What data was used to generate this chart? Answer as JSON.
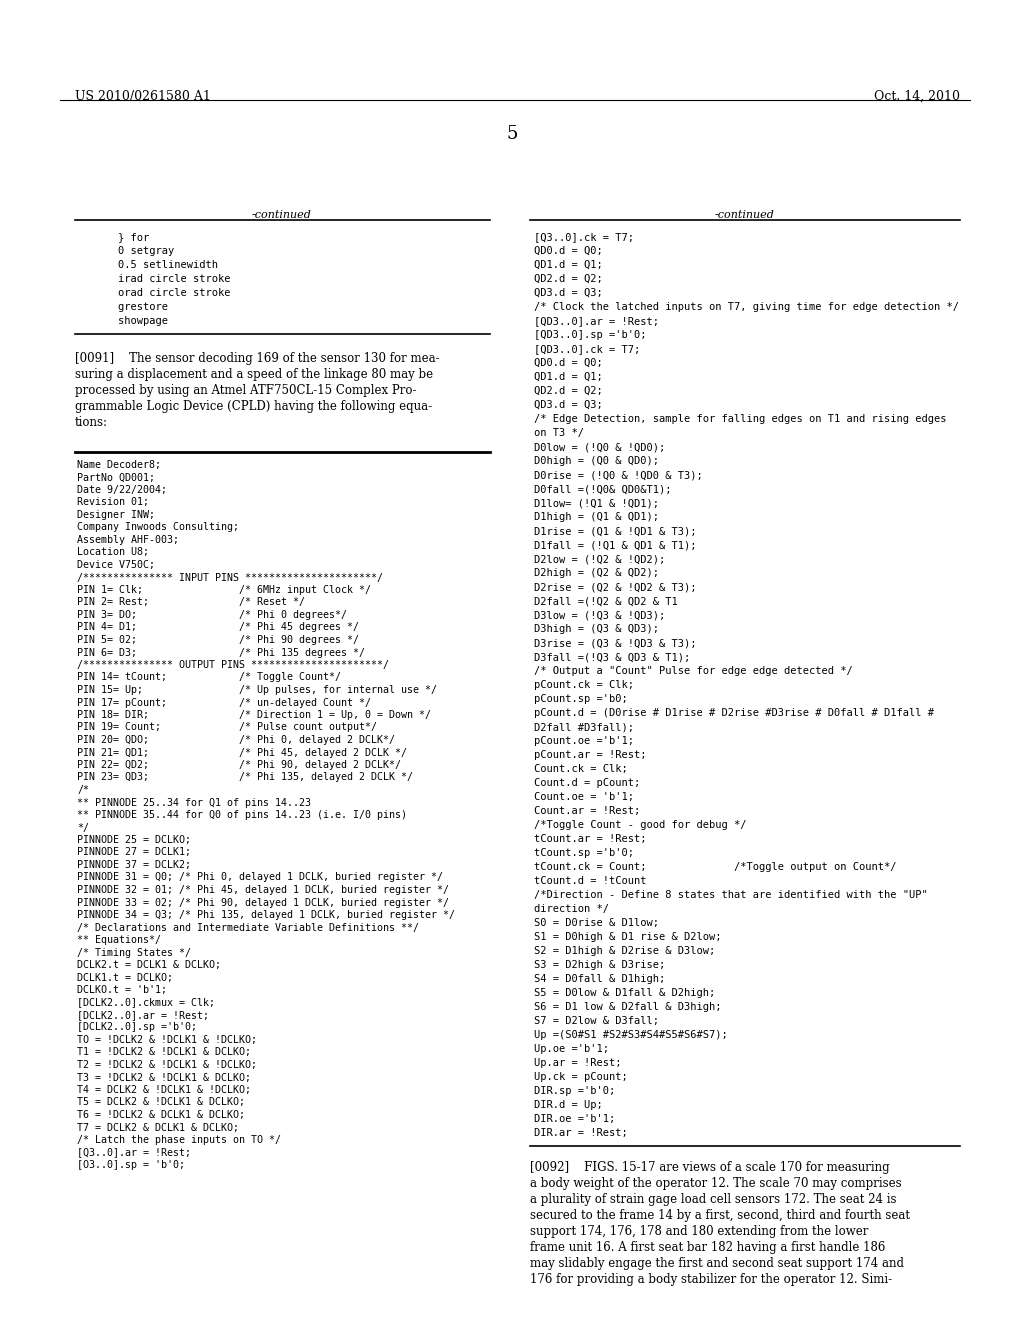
{
  "header_left": "US 2010/0261580 A1",
  "header_right": "Oct. 14, 2010",
  "page_number": "5",
  "bg_color": "#ffffff",
  "text_color": "#000000",
  "col1_code_top": [
    "    } for",
    "    0 setgray",
    "    0.5 setlinewidth",
    "    irad circle stroke",
    "    orad circle stroke",
    "    grestore",
    "    showpage"
  ],
  "col2_code_top": [
    "[Q3..0].ck = T7;",
    "QD0.d = Q0;",
    "QD1.d = Q1;",
    "QD2.d = Q2;",
    "QD3.d = Q3;",
    "/* Clock the latched inputs on T7, giving time for edge detection */",
    "[QD3..0].ar = !Rest;",
    "[QD3..0].sp ='b'0;",
    "[QD3..0].ck = T7;",
    "QD0.d = Q0;",
    "QD1.d = Q1;",
    "QD2.d = Q2;",
    "QD3.d = Q3;",
    "/* Edge Detection, sample for falling edges on T1 and rising edges",
    "on T3 */",
    "D0low = (!Q0 & !QD0);",
    "D0high = (Q0 & QD0);",
    "D0rise = (!Q0 & !QD0 & T3);",
    "D0fall =(!Q0& QD0&T1);",
    "D1low= (!Q1 & !QD1);",
    "D1high = (Q1 & QD1);",
    "D1rise = (Q1 & !QD1 & T3);",
    "D1fall = (!Q1 & QD1 & T1);",
    "D2low = (!Q2 & !QD2);",
    "D2high = (Q2 & QD2);",
    "D2rise = (Q2 & !QD2 & T3);",
    "D2fall =(!Q2 & QD2 & T1",
    "D3low = (!Q3 & !QD3);",
    "D3high = (Q3 & QD3);",
    "D3rise = (Q3 & !QD3 & T3);",
    "D3fall =(!Q3 & QD3 & T1);",
    "/* Output a \"Count\" Pulse for edge edge detected */",
    "pCount.ck = Clk;",
    "pCount.sp ='b0;",
    "pCount.d = (D0rise # D1rise # D2rise #D3rise # D0fall # D1fall #",
    "D2fall #D3fall);",
    "pCount.oe ='b'1;",
    "pCount.ar = !Rest;",
    "Count.ck = Clk;",
    "Count.d = pCount;",
    "Count.oe = 'b'1;",
    "Count.ar = !Rest;",
    "/*Toggle Count - good for debug */",
    "tCount.ar = !Rest;",
    "tCount.sp ='b'0;",
    "tCount.ck = Count;              /*Toggle output on Count*/",
    "tCount.d = !tCount",
    "/*Direction - Define 8 states that are identified with the \"UP\"",
    "direction */",
    "S0 = D0rise & D1low;",
    "S1 = D0high & D1 rise & D2low;",
    "S2 = D1high & D2rise & D3low;",
    "S3 = D2high & D3rise;",
    "S4 = D0fall & D1high;",
    "S5 = D0low & D1fall & D2high;",
    "S6 = D1 low & D2fall & D3high;",
    "S7 = D2low & D3fall;",
    "Up =(S0#S1 #S2#S3#S4#S5#S6#S7);",
    "Up.oe ='b'1;",
    "Up.ar = !Rest;",
    "Up.ck = pCount;",
    "DIR.sp ='b'0;",
    "DIR.d = Up;",
    "DIR.oe ='b'1;",
    "DIR.ar = !Rest;"
  ],
  "col1_code_bottom": [
    "Name Decoder8;",
    "PartNo QD001;",
    "Date 9/22/2004;",
    "Revision 01;",
    "Designer INW;",
    "Company Inwoods Consulting;",
    "Assembly AHF-003;",
    "Location U8;",
    "Device V750C;",
    "/*************** INPUT PINS **********************/",
    "PIN 1= Clk;                /* 6MHz input Clock */",
    "PIN 2= Rest;               /* Reset */",
    "PIN 3= DO;                 /* Phi 0 degrees*/",
    "PIN 4= D1;                 /* Phi 45 degrees */",
    "PIN 5= 02;                 /* Phi 90 degrees */",
    "PIN 6= D3;                 /* Phi 135 degrees */",
    "/*************** OUTPUT PINS **********************/",
    "PIN 14= tCount;            /* Toggle Count*/",
    "PIN 15= Up;                /* Up pulses, for internal use */",
    "PIN 17= pCount;            /* un-delayed Count */",
    "PIN 18= DIR;               /* Direction 1 = Up, 0 = Down */",
    "PIN 19= Count;             /* Pulse count output*/",
    "PIN 20= QDO;               /* Phi 0, delayed 2 DCLK*/",
    "PIN 21= QD1;               /* Phi 45, delayed 2 DCLK */",
    "PIN 22= QD2;               /* Phi 90, delayed 2 DCLK*/",
    "PIN 23= QD3;               /* Phi 135, delayed 2 DCLK */",
    "/*",
    "** PINNODE 25..34 for Q1 of pins 14..23",
    "** PINNODE 35..44 for Q0 of pins 14..23 (i.e. I/0 pins)",
    "*/",
    "PINNODE 25 = DCLKO;",
    "PINNODE 27 = DCLK1;",
    "PINNODE 37 = DCLK2;",
    "PINNODE 31 = Q0; /* Phi 0, delayed 1 DCLK, buried register */",
    "PINNODE 32 = 01; /* Phi 45, delayed 1 DCLK, buried register */",
    "PINNODE 33 = 02; /* Phi 90, delayed 1 DCLK, buried register */",
    "PINNODE 34 = Q3; /* Phi 135, delayed 1 DCLK, buried register */",
    "/* Declarations and Intermediate Variable Definitions **/",
    "** Equations*/",
    "/* Timing States */",
    "DCLK2.t = DCLK1 & DCLKO;",
    "DCLK1.t = DCLKO;",
    "DCLKO.t = 'b'1;",
    "[DCLK2..0].ckmux = Clk;",
    "[DCLK2..0].ar = !Rest;",
    "[DCLK2..0].sp ='b'0;",
    "TO = !DCLK2 & !DCLK1 & !DCLKO;",
    "T1 = !DCLK2 & !DCLK1 & DCLKO;",
    "T2 = !DCLK2 & !DCLK1 & !DCLKO;",
    "T3 = !DCLK2 & !DCLK1 & DCLKO;",
    "T4 = DCLK2 & !DCLK1 & !DCLKO;",
    "T5 = DCLK2 & !DCLK1 & DCLKO;",
    "T6 = !DCLK2 & DCLK1 & DCLKO;",
    "T7 = DCLK2 & DCLK1 & DCLKO;",
    "/* Latch the phase inputs on TO */",
    "[Q3..0].ar = !Rest;",
    "[O3..0].sp = 'b'0;"
  ],
  "para0091_lines": [
    "[0091]    The sensor decoding 169 of the sensor 130 for mea-",
    "suring a displacement and a speed of the linkage 80 may be",
    "processed by using an Atmel ATF750CL-15 Complex Pro-",
    "grammable Logic Device (CPLD) having the following equa-",
    "tions:"
  ],
  "para0092_lines": [
    "[0092]    FIGS. 15-17 are views of a scale 170 for measuring",
    "a body weight of the operator 12. The scale 70 may comprises",
    "a plurality of strain gage load cell sensors 172. The seat 24 is",
    "secured to the frame 14 by a first, second, third and fourth seat",
    "support 174, 176, 178 and 180 extending from the lower",
    "frame unit 16. A first seat bar 182 having a first handle 186",
    "may slidably engage the first and second seat support 174 and",
    "176 for providing a body stabilizer for the operator 12. Simi-"
  ]
}
